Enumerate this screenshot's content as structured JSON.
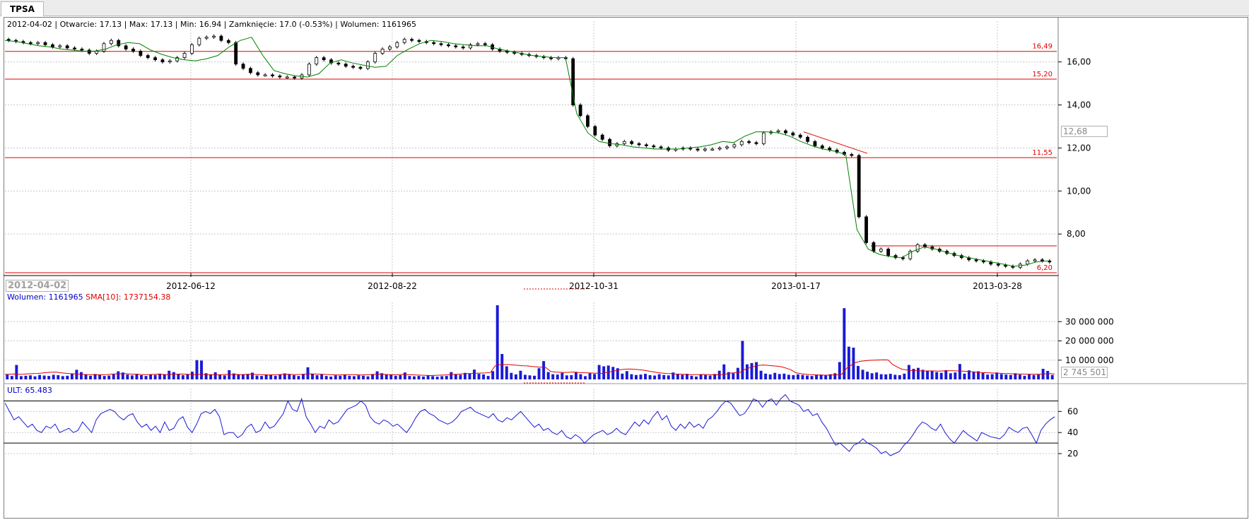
{
  "tab": {
    "label": "TPSA"
  },
  "info_line": "2012-04-02 | Otwarcie: 17.13 | Max: 17.13 | Min: 16.94 | Zamknięcie: 17.0 (-0.53%)  | Wolumen: 1161965",
  "date_badge": "2012-04-02",
  "price_badge": "12,68",
  "volume_badge": "2 745 501",
  "volume_info": {
    "volume": "Wolumen: 1161965",
    "sma": "SMA[10]: 1737154.38"
  },
  "ult_info": "ULT: 65.483",
  "colors": {
    "line": "#008000",
    "hline": "#e00000",
    "volume": "#1a1ad6",
    "sma": "#e00000",
    "ult": "#1a1ad6",
    "grid": "#c8c8c8"
  },
  "chart_data": [
    {
      "type": "candlestick",
      "title": "",
      "x_ticks": [
        "2012-06-12",
        "2012-08-22",
        "2012-10-31",
        "2013-01-17",
        "2013-03-28"
      ],
      "y_ticks": [
        "16,00",
        "14,00",
        "12,00",
        "10,00",
        "8,00"
      ],
      "ylim": [
        6.2,
        17.5
      ],
      "horizontal_levels": [
        {
          "value": 16.49,
          "label": "16,49"
        },
        {
          "value": 15.2,
          "label": "15,20"
        },
        {
          "value": 11.55,
          "label": "11,55"
        },
        {
          "value": 6.2,
          "label": "6,20"
        }
      ],
      "close_series": [
        17.0,
        16.95,
        16.9,
        16.85,
        16.9,
        16.8,
        16.7,
        16.75,
        16.65,
        16.6,
        16.55,
        16.4,
        16.5,
        16.85,
        17.0,
        16.75,
        16.6,
        16.5,
        16.3,
        16.2,
        16.1,
        16.0,
        16.05,
        16.2,
        16.4,
        16.8,
        17.1,
        17.15,
        17.2,
        17.0,
        16.9,
        15.9,
        15.7,
        15.5,
        15.4,
        15.4,
        15.35,
        15.3,
        15.3,
        15.25,
        15.4,
        15.9,
        16.2,
        16.1,
        15.95,
        15.9,
        15.8,
        15.75,
        15.7,
        16.0,
        16.4,
        16.6,
        16.7,
        16.9,
        17.05,
        17.0,
        16.95,
        16.9,
        16.85,
        16.8,
        16.75,
        16.7,
        16.65,
        16.8,
        16.85,
        16.8,
        16.6,
        16.5,
        16.45,
        16.4,
        16.35,
        16.3,
        16.25,
        16.2,
        16.15,
        16.2,
        16.15,
        14.0,
        13.5,
        13.0,
        12.6,
        12.4,
        12.1,
        12.2,
        12.3,
        12.2,
        12.15,
        12.1,
        12.05,
        12.0,
        11.9,
        11.95,
        12.0,
        11.95,
        11.9,
        11.95,
        11.95,
        12.0,
        12.05,
        12.15,
        12.3,
        12.25,
        12.2,
        12.7,
        12.75,
        12.8,
        12.7,
        12.6,
        12.5,
        12.3,
        12.1,
        12.0,
        11.9,
        11.8,
        11.7,
        11.65,
        8.8,
        7.6,
        7.2,
        7.3,
        7.0,
        6.9,
        6.85,
        7.2,
        7.5,
        7.4,
        7.3,
        7.2,
        7.1,
        7.0,
        6.9,
        6.8,
        6.75,
        6.7,
        6.6,
        6.55,
        6.5,
        6.45,
        6.6,
        6.75,
        6.8,
        6.75,
        6.7
      ],
      "trend_line": [
        17.0,
        16.95,
        16.85,
        16.75,
        16.7,
        16.6,
        16.55,
        16.5,
        16.5,
        16.6,
        16.8,
        16.9,
        16.85,
        16.55,
        16.35,
        16.2,
        16.1,
        16.05,
        16.15,
        16.3,
        16.7,
        17.0,
        17.15,
        16.3,
        15.6,
        15.45,
        15.35,
        15.3,
        15.45,
        15.95,
        16.1,
        15.95,
        15.85,
        15.75,
        15.8,
        16.3,
        16.6,
        16.85,
        17.0,
        16.95,
        16.85,
        16.8,
        16.75,
        16.75,
        16.6,
        16.5,
        16.4,
        16.3,
        16.25,
        16.2,
        16.2,
        13.6,
        12.7,
        12.3,
        12.2,
        12.15,
        12.05,
        12.0,
        11.95,
        11.95,
        11.95,
        12.0,
        12.05,
        12.15,
        12.3,
        12.25,
        12.55,
        12.75,
        12.75,
        12.7,
        12.55,
        12.3,
        12.1,
        11.95,
        11.85,
        11.7,
        8.2,
        7.3,
        7.05,
        6.95,
        6.9,
        7.2,
        7.4,
        7.3,
        7.15,
        7.0,
        6.9,
        6.8,
        6.7,
        6.6,
        6.5,
        6.55,
        6.7,
        6.75
      ]
    },
    {
      "type": "bar",
      "title": "Wolumen",
      "y_ticks": [
        "30 000 000",
        "20 000 000",
        "10 000 000"
      ],
      "ylim": [
        0,
        40000000
      ],
      "values": [
        2500000,
        1800000,
        7500000,
        1700000,
        1900000,
        2100000,
        1600000,
        2300000,
        2000000,
        1800000,
        2400000,
        2200000,
        1700000,
        1900000,
        3000000,
        5000000,
        3800000,
        2600000,
        1900000,
        2800000,
        2300000,
        1800000,
        2000000,
        2700000,
        4200000,
        3600000,
        2500000,
        2100000,
        2900000,
        2200000,
        1800000,
        2600000,
        2300000,
        3000000,
        2500000,
        4500000,
        3800000,
        2900000,
        2200000,
        2700000,
        4000000,
        10000000,
        9800000,
        3200000,
        2600000,
        3700000,
        2400000,
        2100000,
        4800000,
        3100000,
        2600000,
        2400000,
        2800000,
        3500000,
        2000000,
        1800000,
        2600000,
        2200000,
        1900000,
        2400000,
        3100000,
        2600000,
        2200000,
        1800000,
        2600000,
        6300000,
        2900000,
        2200000,
        2800000,
        1800000,
        1500000,
        2100000,
        1900000,
        2500000,
        1900000,
        1700000,
        2100000,
        1900000,
        1600000,
        2800000,
        4200000,
        3200000,
        2400000,
        2600000,
        1900000,
        2200000,
        3600000,
        1800000,
        1600000,
        1800000,
        1500000,
        2000000,
        1700000,
        1400000,
        1700000,
        1800000,
        3800000,
        2600000,
        2400000,
        3400000,
        3100000,
        5100000,
        2900000,
        2600000,
        1800000,
        4300000,
        38500000,
        13200000,
        6800000,
        3400000,
        2600000,
        4500000,
        2400000,
        2100000,
        1900000,
        5800000,
        9500000,
        3800000,
        2700000,
        2500000,
        3400000,
        2100000,
        2200000,
        3900000,
        2700000,
        1700000,
        3200000,
        2800000,
        7500000,
        6800000,
        7200000,
        6500000,
        5800000,
        3000000,
        4300000,
        2700000,
        2300000,
        2500000,
        2900000,
        2200000,
        2000000,
        2700000,
        2300000,
        2100000,
        3600000,
        2700000,
        2400000,
        2900000,
        1900000,
        1500000,
        2500000,
        2300000,
        2000000,
        2800000,
        4500000,
        7800000,
        3800000,
        3200000,
        6000000,
        20000000,
        7800000,
        8500000,
        9000000,
        4500000,
        3000000,
        2600000,
        3400000,
        2800000,
        3000000,
        2400000,
        2200000,
        2600000,
        2300000,
        2000000,
        1800000,
        2400000,
        2500000,
        2000000,
        2700000,
        3200000,
        9000000,
        37000000,
        17000000,
        16500000,
        7000000,
        5000000,
        4000000,
        3200000,
        3600000,
        2700000,
        2600000,
        2900000,
        2400000,
        2200000,
        3000000,
        7500000,
        5500000,
        6000000,
        5000000,
        4600000,
        4500000,
        3800000,
        3400000,
        4800000,
        3200000,
        3600000,
        8000000,
        3000000,
        4700000,
        4000000,
        4200000,
        3300000,
        2500000,
        2700000,
        3600000,
        2800000,
        2500000,
        2300000,
        3200000,
        2500000,
        1900000,
        2600000,
        2300000,
        2500000,
        5500000,
        4400000,
        2300000
      ],
      "sma": [
        2600000,
        2700000,
        2800000,
        2600000,
        2700000,
        2900000,
        3000000,
        3100000,
        3300000,
        3600000,
        3700000,
        3800000,
        3500000,
        3200000,
        3000000,
        2900000,
        2700000,
        2600000,
        2500000,
        2500000,
        2400000,
        2400000,
        2500000,
        2700000,
        2900000,
        2900000,
        3000000,
        2800000,
        2700000,
        2600000,
        2500000,
        2500000,
        2600000,
        2700000,
        2600000,
        2500000,
        2600000,
        2700000,
        2800000,
        2700000,
        2600000,
        2500000,
        2600000,
        2600000,
        2500000,
        2500000,
        2400000,
        2500000,
        2600000,
        2500000,
        2600000,
        2500000,
        2600000,
        2700000,
        2600000,
        2500000,
        2400000,
        2300000,
        2400000,
        2500000,
        2600000,
        2700000,
        2600000,
        2500000,
        2600000,
        2800000,
        2900000,
        2800000,
        2700000,
        2600000,
        2500000,
        2400000,
        2300000,
        2400000,
        2500000,
        2500000,
        2400000,
        2300000,
        2400000,
        2500000,
        2600000,
        2700000,
        2600000,
        2500000,
        2400000,
        2500000,
        2600000,
        2500000,
        2400000,
        2300000,
        2200000,
        2100000,
        2000000,
        2100000,
        2200000,
        2300000,
        2400000,
        2600000,
        2700000,
        2900000,
        3000000,
        3100000,
        3200000,
        3300000,
        3400000,
        3600000,
        7000000,
        7600000,
        7700000,
        7700000,
        7500000,
        7300000,
        7100000,
        7000000,
        6700000,
        6500000,
        6300000,
        6100000,
        4200000,
        3800000,
        3700000,
        3600000,
        3700000,
        3800000,
        3600000,
        3500000,
        3400000,
        3300000,
        3200000,
        3100000,
        3600000,
        4000000,
        4500000,
        5000000,
        5300000,
        5400000,
        5300000,
        5100000,
        4800000,
        4400000,
        4000000,
        3600000,
        3300000,
        3100000,
        3000000,
        2800000,
        2700000,
        2600000,
        2500000,
        2500000,
        2500000,
        2600000,
        2500000,
        2400000,
        2400000,
        2500000,
        2800000,
        3300000,
        3500000,
        3700000,
        5200000,
        6000000,
        6700000,
        7300000,
        7500000,
        7300000,
        7100000,
        6900000,
        6500000,
        5800000,
        5000000,
        3500000,
        3000000,
        2700000,
        2500000,
        2400000,
        2300000,
        2200000,
        2200000,
        2300000,
        2400000,
        2700000,
        5800000,
        7400000,
        8800000,
        9400000,
        9700000,
        9900000,
        10000000,
        10100000,
        10200000,
        10100000,
        7700000,
        6400000,
        5300000,
        4900000,
        4600000,
        4500000,
        4400000,
        4400000,
        4400000,
        4400000,
        4300000,
        4400000,
        4500000,
        4500000,
        4400000,
        4300000,
        4200000,
        4000000,
        3800000,
        3600000,
        3500000,
        3400000,
        3300000,
        3200000,
        3100000,
        3000000,
        2900000,
        2800000,
        2800000,
        2700000,
        2700000,
        2700000,
        2700000,
        2900000,
        3000000,
        2800000
      ]
    },
    {
      "type": "line",
      "title": "ULT",
      "y_ticks": [
        "60",
        "40",
        "20"
      ],
      "ylim": [
        18,
        75
      ],
      "levels": [
        70,
        30
      ],
      "values": [
        68,
        60,
        52,
        55,
        50,
        45,
        48,
        42,
        40,
        46,
        44,
        48,
        40,
        42,
        44,
        40,
        42,
        50,
        45,
        40,
        52,
        58,
        60,
        62,
        60,
        55,
        52,
        56,
        58,
        50,
        45,
        48,
        42,
        46,
        40,
        50,
        42,
        44,
        52,
        55,
        45,
        40,
        48,
        58,
        60,
        58,
        62,
        55,
        38,
        40,
        40,
        35,
        38,
        45,
        48,
        40,
        42,
        50,
        44,
        46,
        52,
        58,
        70,
        62,
        60,
        72,
        55,
        48,
        40,
        46,
        44,
        52,
        48,
        50,
        56,
        62,
        64,
        66,
        70,
        66,
        55,
        50,
        48,
        52,
        50,
        46,
        48,
        44,
        40,
        46,
        54,
        60,
        62,
        58,
        56,
        52,
        50,
        48,
        50,
        54,
        60,
        62,
        64,
        60,
        58,
        56,
        54,
        58,
        52,
        50,
        54,
        52,
        56,
        60,
        55,
        50,
        45,
        48,
        42,
        44,
        40,
        38,
        42,
        36,
        34,
        38,
        35,
        30,
        34,
        38,
        40,
        42,
        38,
        40,
        44,
        40,
        38,
        44,
        50,
        46,
        52,
        48,
        55,
        60,
        52,
        56,
        46,
        42,
        48,
        44,
        50,
        45,
        48,
        44,
        52,
        55,
        60,
        66,
        70,
        68,
        62,
        56,
        58,
        64,
        72,
        70,
        64,
        70,
        72,
        66,
        72,
        76,
        70,
        68,
        66,
        60,
        62,
        56,
        58,
        50,
        44,
        36,
        28,
        30,
        26,
        22,
        28,
        30,
        34,
        30,
        28,
        25,
        20,
        22,
        18,
        20,
        22,
        28,
        32,
        38,
        45,
        50,
        48,
        44,
        42,
        48,
        40,
        34,
        30,
        36,
        42,
        38,
        35,
        32,
        40,
        38,
        36,
        35,
        34,
        38,
        45,
        42,
        40,
        44,
        45,
        38,
        30,
        42,
        48,
        52,
        55
      ]
    }
  ]
}
